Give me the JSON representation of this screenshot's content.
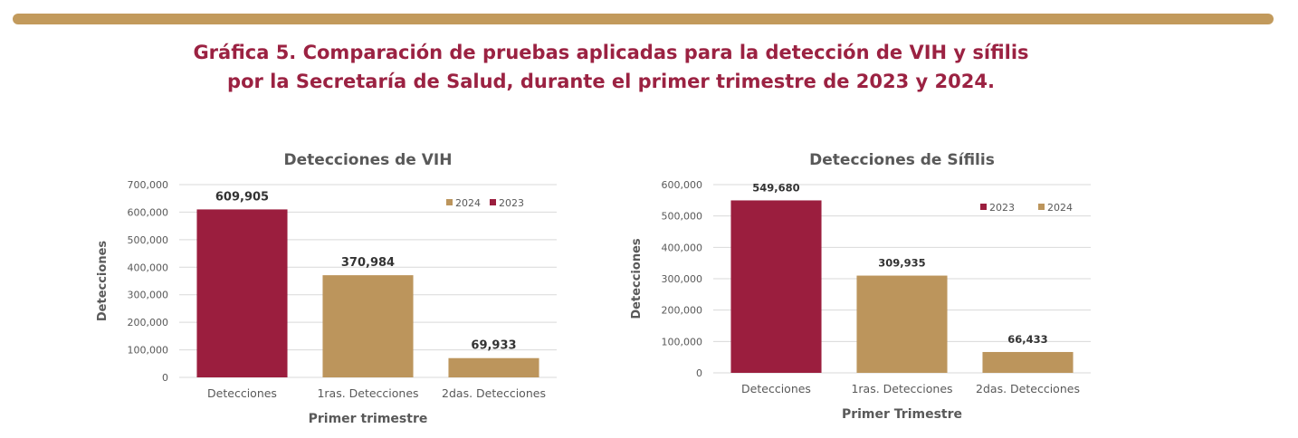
{
  "colors": {
    "accent_bar": "#C29A5C",
    "title": "#9B2242",
    "series_2023": "#9B1E3E",
    "series_2024": "#BC955C",
    "text": "#595959",
    "grid": "#D9D9D9"
  },
  "title_line1": "Gráfica 5. Comparación de pruebas aplicadas para la detección de VIH y sífilis",
  "title_line2": "por la Secretaría de Salud, durante el primer trimestre de 2023 y 2024.",
  "chart_data": [
    {
      "type": "bar",
      "title": "Detecciones de VIH",
      "xlabel": "Primer trimestre",
      "ylabel": "Detecciones",
      "ylim": [
        0,
        700000
      ],
      "ticks": [
        "0",
        "100,000",
        "200,000",
        "300,000",
        "400,000",
        "500,000",
        "600,000",
        "700,000"
      ],
      "grid": true,
      "legend_position": "top-right",
      "legend": [
        {
          "name": "2024",
          "color": "#BC955C"
        },
        {
          "name": "2023",
          "color": "#9B1E3E"
        }
      ],
      "categories": [
        "Detecciones",
        "1ras. Detecciones",
        "2das. Detecciones"
      ],
      "values": [
        609905,
        370984,
        69933
      ],
      "value_labels": [
        "609,905",
        "370,984",
        "69,933"
      ],
      "bar_series": [
        "2023",
        "2024",
        "2024"
      ]
    },
    {
      "type": "bar",
      "title": "Detecciones de Sífilis",
      "xlabel": "Primer Trimestre",
      "ylabel": "Detecciones",
      "ylim": [
        0,
        600000
      ],
      "ticks": [
        "0",
        "100,000",
        "200,000",
        "300,000",
        "400,000",
        "500,000",
        "600,000"
      ],
      "grid": true,
      "legend_position": "top-right",
      "legend": [
        {
          "name": "2023",
          "color": "#9B1E3E"
        },
        {
          "name": "2024",
          "color": "#BC955C"
        }
      ],
      "categories": [
        "Detecciones",
        "1ras. Detecciones",
        "2das. Detecciones"
      ],
      "values": [
        549680,
        309935,
        66433
      ],
      "value_labels": [
        "549,680",
        "309,935",
        "66,433"
      ],
      "bar_series": [
        "2023",
        "2024",
        "2024"
      ]
    }
  ]
}
